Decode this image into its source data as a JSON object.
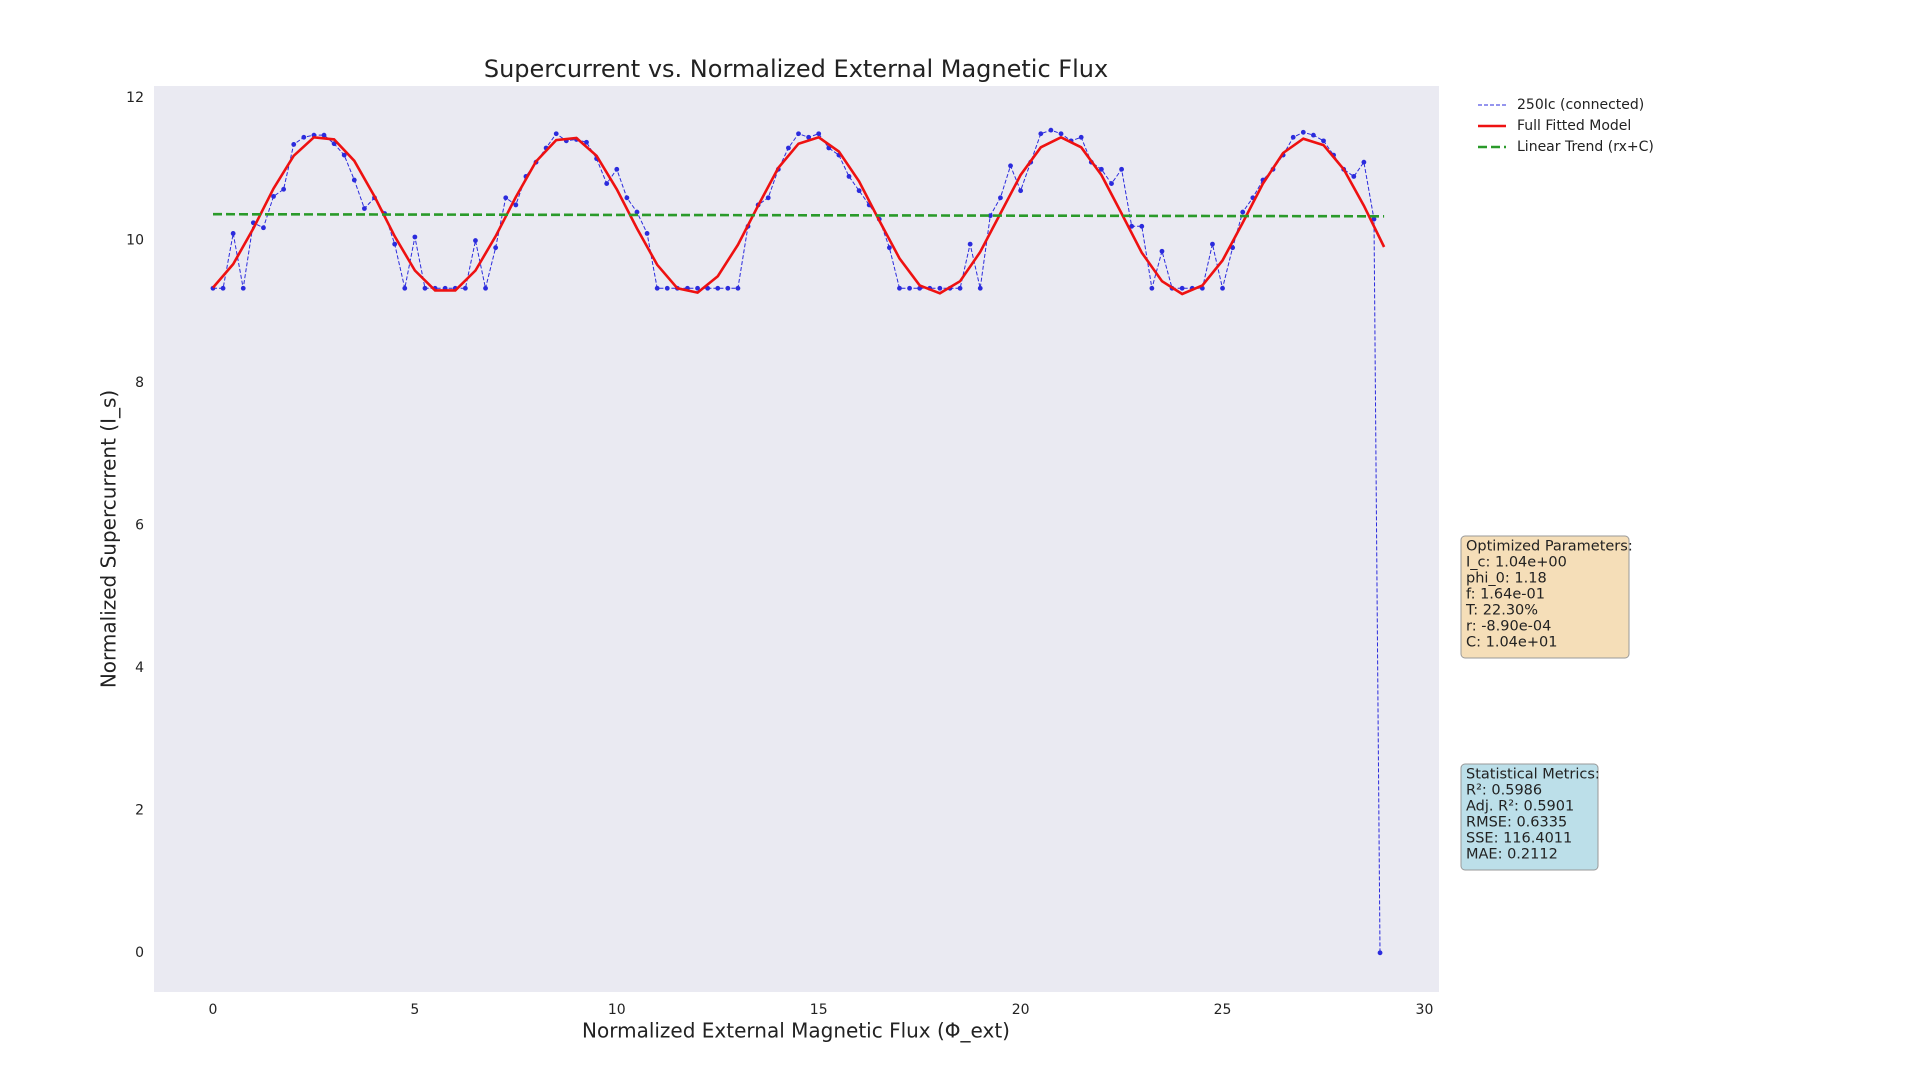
{
  "chart_data": {
    "type": "line",
    "title": "Supercurrent vs. Normalized External Magnetic Flux",
    "xlabel": "Normalized External Magnetic Flux (Φ_ext)",
    "ylabel": "Normalized Supercurrent (I_s)",
    "xlim": [
      -1.46,
      30.36
    ],
    "xticks": [
      0,
      5,
      10,
      15,
      20,
      25,
      30
    ],
    "ylim": [
      -0.55,
      12.17
    ],
    "yticks": [
      0,
      2,
      4,
      6,
      8,
      10,
      12
    ],
    "grid": false,
    "background": "#eaeaf2",
    "legend": "upper right outside",
    "series": [
      {
        "name": "250Ic (connected)",
        "color": "#2b2bdd",
        "linestyle": "dashed",
        "linewidth": 1,
        "marker": true,
        "x": [
          0,
          0.25,
          0.5,
          0.75,
          1,
          1.25,
          1.5,
          1.75,
          2,
          2.25,
          2.5,
          2.75,
          3,
          3.25,
          3.5,
          3.75,
          4,
          4.25,
          4.5,
          4.75,
          5,
          5.25,
          5.5,
          5.75,
          6,
          6.25,
          6.5,
          6.75,
          7,
          7.25,
          7.5,
          7.75,
          8,
          8.25,
          8.5,
          8.75,
          9,
          9.25,
          9.5,
          9.75,
          10,
          10.25,
          10.5,
          10.75,
          11,
          11.25,
          11.5,
          11.75,
          12,
          12.25,
          12.5,
          12.75,
          13,
          13.25,
          13.5,
          13.75,
          14,
          14.25,
          14.5,
          14.75,
          15,
          15.25,
          15.5,
          15.75,
          16,
          16.25,
          16.5,
          16.75,
          17,
          17.25,
          17.5,
          17.75,
          18,
          18.25,
          18.5,
          18.75,
          19,
          19.25,
          19.5,
          19.75,
          20,
          20.25,
          20.5,
          20.75,
          21,
          21.25,
          21.5,
          21.75,
          22,
          22.25,
          22.5,
          22.75,
          23,
          23.25,
          23.5,
          23.75,
          24,
          24.25,
          24.5,
          24.75,
          25,
          25.25,
          25.5,
          25.75,
          26,
          26.25,
          26.5,
          26.75,
          27,
          27.25,
          27.5,
          27.75,
          28,
          28.25,
          28.5,
          28.75,
          28.9
        ],
        "values": [
          9.33,
          9.33,
          10.1,
          9.33,
          10.25,
          10.18,
          10.62,
          10.72,
          11.35,
          11.45,
          11.48,
          11.48,
          11.36,
          11.2,
          10.85,
          10.45,
          10.6,
          10.38,
          9.95,
          9.33,
          10.05,
          9.33,
          9.33,
          9.33,
          9.33,
          9.33,
          10.0,
          9.33,
          9.9,
          10.6,
          10.5,
          10.9,
          11.1,
          11.3,
          11.5,
          11.4,
          11.42,
          11.38,
          11.15,
          10.8,
          11.0,
          10.6,
          10.4,
          10.1,
          9.33,
          9.33,
          9.33,
          9.33,
          9.33,
          9.33,
          9.33,
          9.33,
          9.33,
          10.2,
          10.5,
          10.6,
          11.0,
          11.3,
          11.5,
          11.45,
          11.5,
          11.3,
          11.2,
          10.9,
          10.7,
          10.5,
          10.3,
          9.9,
          9.33,
          9.33,
          9.33,
          9.33,
          9.33,
          9.33,
          9.33,
          9.95,
          9.33,
          10.35,
          10.6,
          11.05,
          10.7,
          11.1,
          11.5,
          11.55,
          11.5,
          11.4,
          11.45,
          11.1,
          11.0,
          10.8,
          11.0,
          10.2,
          10.2,
          9.33,
          9.85,
          9.33,
          9.33,
          9.33,
          9.33,
          9.95,
          9.33,
          9.9,
          10.4,
          10.6,
          10.85,
          11.0,
          11.2,
          11.45,
          11.52,
          11.48,
          11.4,
          11.2,
          11.0,
          10.9,
          11.1,
          10.3,
          0
        ]
      },
      {
        "name": "Full Fitted Model",
        "color": "#ee1111",
        "linestyle": "solid",
        "linewidth": 2.6,
        "marker": false,
        "x": [
          0,
          0.5,
          1,
          1.5,
          2,
          2.5,
          3,
          3.5,
          4,
          4.5,
          5,
          5.5,
          6,
          6.5,
          7,
          7.5,
          8,
          8.5,
          9,
          9.5,
          10,
          10.5,
          11,
          11.5,
          12,
          12.5,
          13,
          13.5,
          14,
          14.5,
          15,
          15.5,
          16,
          16.5,
          17,
          17.5,
          18,
          18.5,
          19,
          19.5,
          20,
          20.5,
          21,
          21.5,
          22,
          22.5,
          23,
          23.5,
          24,
          24.5,
          25,
          25.5,
          26,
          26.5,
          27,
          27.5,
          28,
          28.5,
          29
        ],
        "values": [
          9.34,
          9.67,
          10.17,
          10.73,
          11.19,
          11.45,
          11.42,
          11.12,
          10.62,
          10.06,
          9.58,
          9.3,
          9.3,
          9.58,
          10.06,
          10.61,
          11.11,
          11.41,
          11.44,
          11.19,
          10.72,
          10.17,
          9.66,
          9.33,
          9.27,
          9.5,
          9.94,
          10.49,
          11.02,
          11.36,
          11.45,
          11.25,
          10.83,
          10.28,
          9.75,
          9.37,
          9.26,
          9.43,
          9.84,
          10.38,
          10.92,
          11.31,
          11.45,
          11.31,
          10.92,
          10.38,
          9.83,
          9.43,
          9.25,
          9.37,
          9.72,
          10.25,
          10.8,
          11.23,
          11.43,
          11.34,
          11.0,
          10.49,
          9.91
        ]
      },
      {
        "name": "Linear Trend (rx+C)",
        "color": "#2a9a2a",
        "linestyle": "dashed",
        "linewidth": 2.6,
        "marker": false,
        "x": [
          0,
          29
        ],
        "values": [
          10.37,
          10.34
        ]
      }
    ],
    "annotations": [
      {
        "color": "#f5deb8",
        "lines": [
          "Optimized Parameters:",
          "I_c: 1.04e+00",
          "phi_0: 1.18",
          "f: 1.64e-01",
          "T: 22.30%",
          "r: -8.90e-04",
          "C: 1.04e+01"
        ]
      },
      {
        "color": "#bcdfe9",
        "lines": [
          "Statistical Metrics:",
          "R²: 0.5986",
          "Adj. R²: 0.5901",
          "RMSE: 0.6335",
          "SSE: 116.4011",
          "MAE: 0.2112"
        ]
      }
    ]
  }
}
